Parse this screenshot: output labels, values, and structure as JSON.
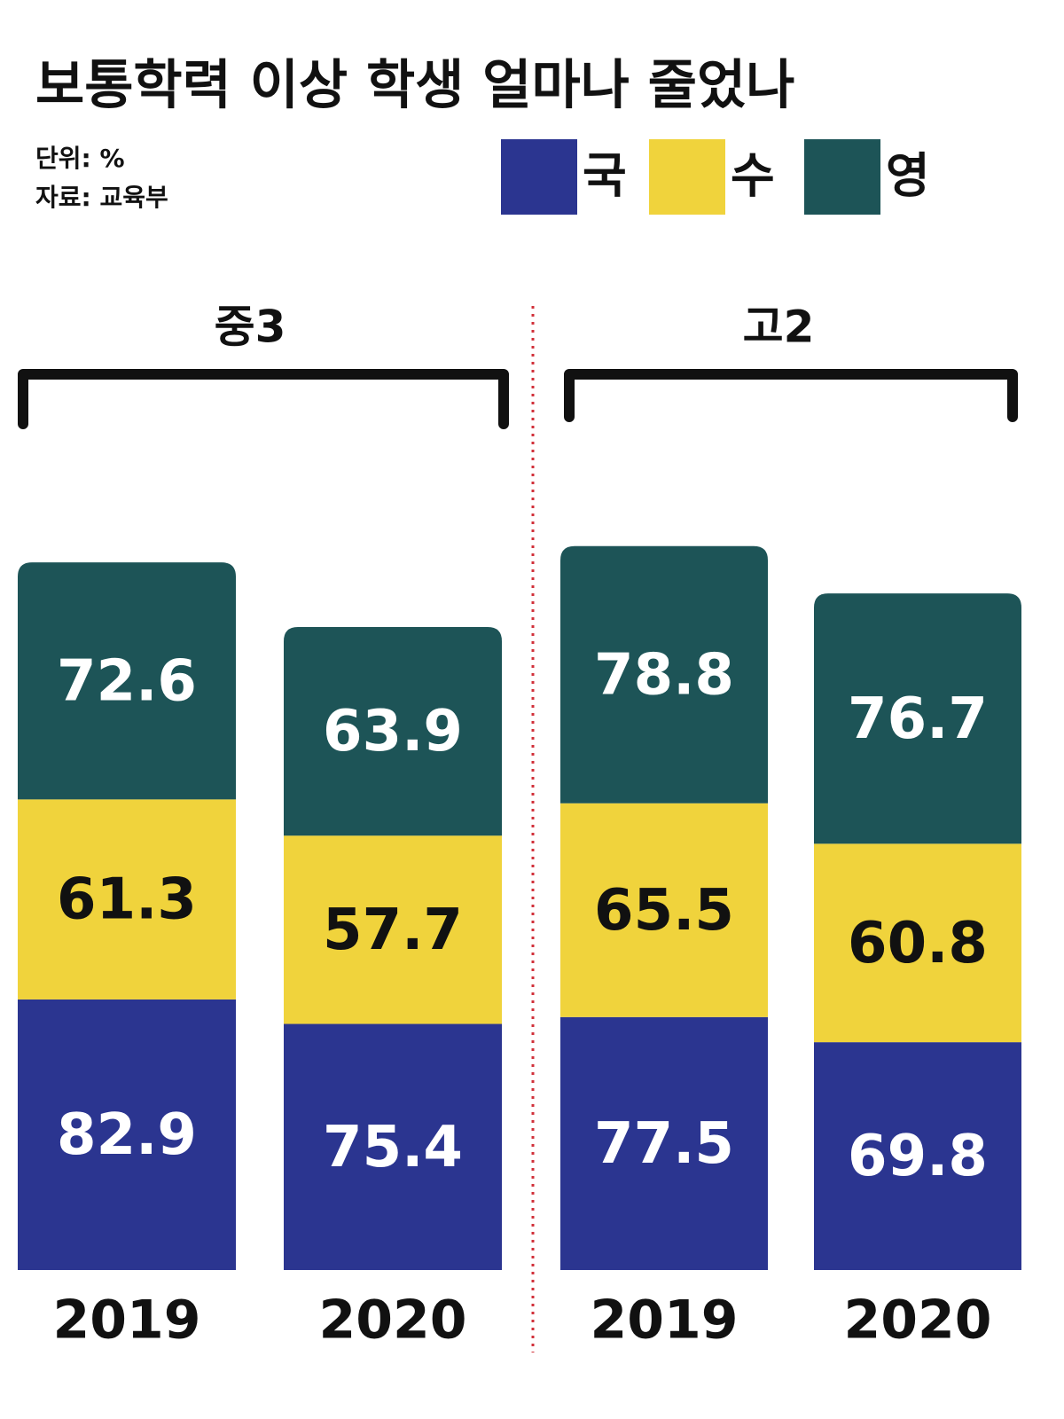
{
  "chart_data": {
    "type": "stacked_bar",
    "title": "보통학력 이상 학생 얼마나 줄었나",
    "unit": "단위: %",
    "source": "자료: 교육부",
    "groups": [
      "중3",
      "고2"
    ],
    "categories": [
      "2019",
      "2020",
      "2019",
      "2020"
    ],
    "series": [
      {
        "name": "국",
        "color": "#2b3590",
        "values": [
          82.9,
          75.4,
          77.5,
          69.8
        ]
      },
      {
        "name": "수",
        "color": "#f0d33c",
        "values": [
          61.3,
          57.7,
          65.5,
          60.8
        ]
      },
      {
        "name": "영",
        "color": "#1d5457",
        "values": [
          72.6,
          63.9,
          78.8,
          76.7
        ]
      }
    ],
    "legend": "top-right"
  }
}
